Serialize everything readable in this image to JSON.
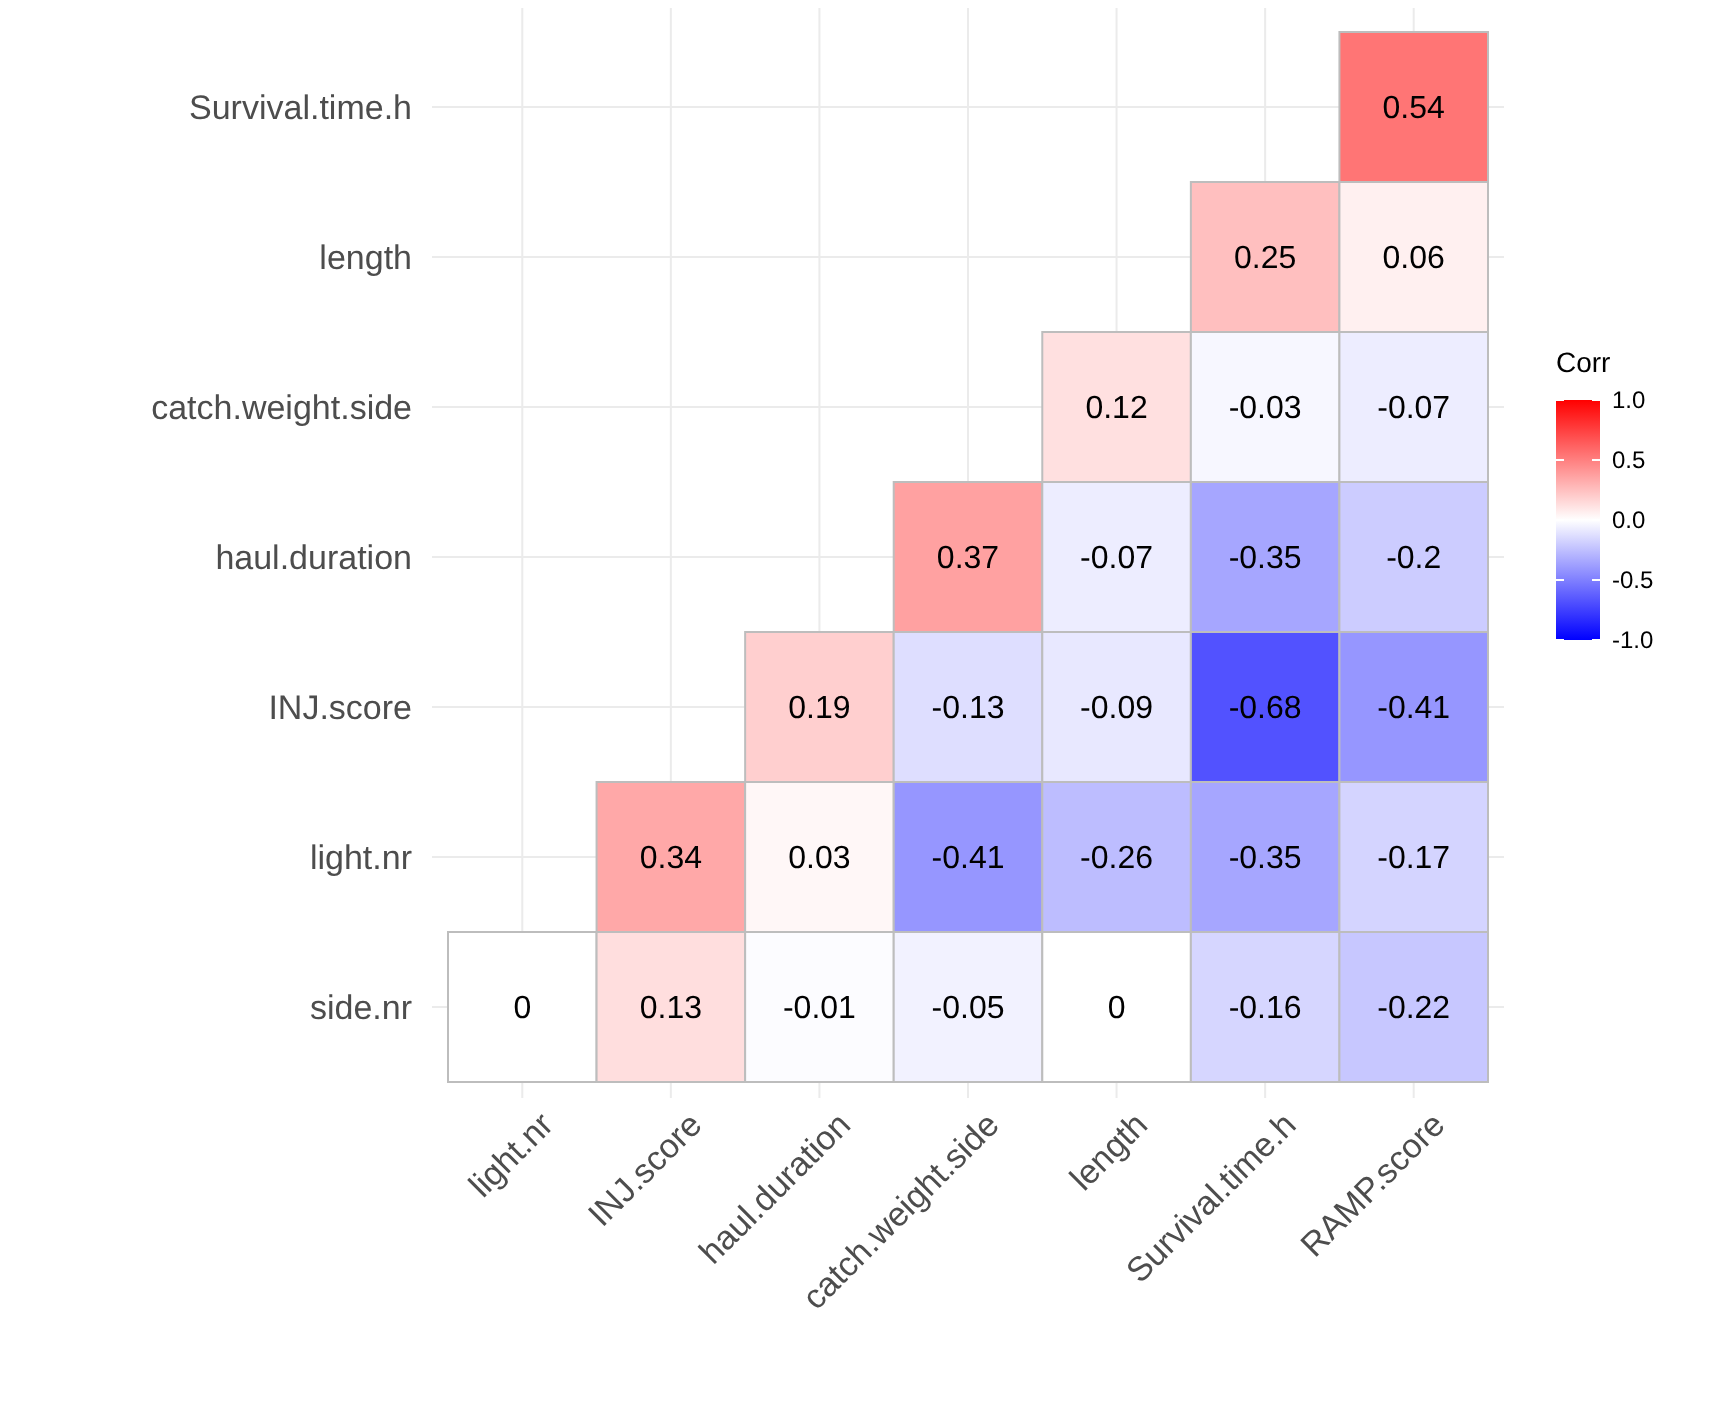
{
  "chart_data": {
    "type": "heatmap",
    "legend_title": "Corr",
    "categories": [
      "light.nr",
      "INJ.score",
      "haul.duration",
      "catch.weight.side",
      "length",
      "Survival.time.h",
      "RAMP.score"
    ],
    "y_categories": [
      "Survival.time.h",
      "length",
      "catch.weight.side",
      "haul.duration",
      "INJ.score",
      "light.nr",
      "side.nr"
    ],
    "cells": [
      [
        null,
        null,
        null,
        null,
        null,
        null,
        0.54
      ],
      [
        null,
        null,
        null,
        null,
        null,
        0.25,
        0.06
      ],
      [
        null,
        null,
        null,
        null,
        0.12,
        -0.03,
        -0.07
      ],
      [
        null,
        null,
        null,
        0.37,
        -0.07,
        -0.35,
        -0.2
      ],
      [
        null,
        null,
        0.19,
        -0.13,
        -0.09,
        -0.68,
        -0.41
      ],
      [
        null,
        0.34,
        0.03,
        -0.41,
        -0.26,
        -0.35,
        -0.17
      ],
      [
        0,
        0.13,
        -0.01,
        -0.05,
        0,
        -0.16,
        -0.22
      ]
    ],
    "data_labels": true,
    "clim": [
      -1,
      1
    ],
    "cticks": [
      {
        "value": -1,
        "label": "-1.0"
      },
      {
        "value": -0.5,
        "label": "-0.5"
      },
      {
        "value": 0,
        "label": "0.0"
      },
      {
        "value": 0.5,
        "label": "0.5"
      },
      {
        "value": 1,
        "label": "1.0"
      }
    ],
    "grid": true
  }
}
